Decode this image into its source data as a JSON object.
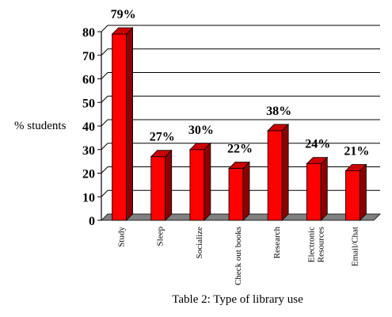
{
  "chart_data": {
    "type": "bar",
    "title": "",
    "caption": "Table 2: Type of library use",
    "ylabel": "% students",
    "xlabel": "",
    "categories": [
      "Study",
      "Sleep",
      "Socialize",
      "Check out books",
      "Research",
      "Electronic Resources",
      "Email/Chat"
    ],
    "values": [
      79,
      27,
      30,
      22,
      38,
      24,
      21
    ],
    "data_labels": [
      "79%",
      "27%",
      "30%",
      "22%",
      "38%",
      "24%",
      "21%"
    ],
    "ylim": [
      0,
      80
    ],
    "yticks": [
      "0",
      "10",
      "20",
      "30",
      "40",
      "50",
      "60",
      "70",
      "80"
    ],
    "grid": true,
    "legend": "none",
    "colors": {
      "bar_front": "#ff0000",
      "bar_side": "#8b0000",
      "bar_top": "#cc0000",
      "floor": "#808080",
      "wall": "#c0c0c0"
    }
  }
}
